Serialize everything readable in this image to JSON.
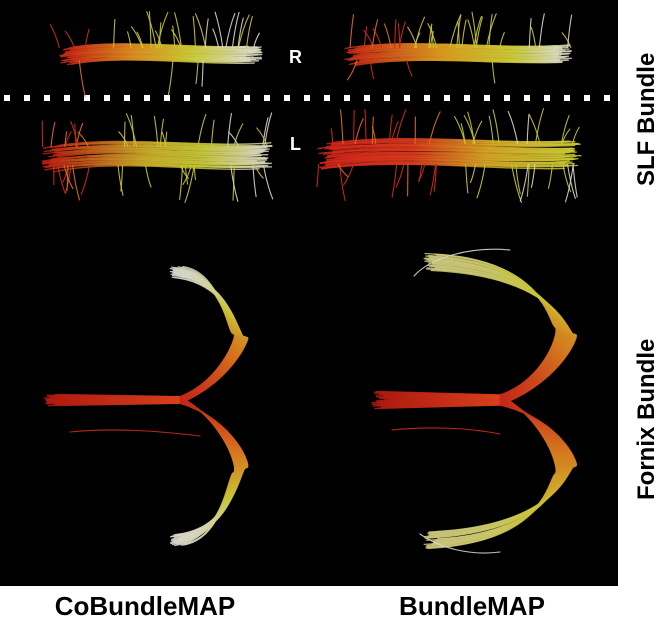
{
  "figure": {
    "hemisphere_labels": {
      "right": "R",
      "left": "L"
    },
    "bundle_labels": {
      "slf": "SLF Bundle",
      "fornix": "Fornix Bundle"
    },
    "method_labels": {
      "left": "CoBundleMAP",
      "right": "BundleMAP"
    },
    "colors": {
      "background": "#000000",
      "page": "#ffffff",
      "tract_red": "#d42a18",
      "tract_orange": "#e0701c",
      "tract_yellow": "#c9c834",
      "tract_pale": "#d8d8c8",
      "label_light": "#ffffff",
      "label_dark": "#000000"
    }
  }
}
